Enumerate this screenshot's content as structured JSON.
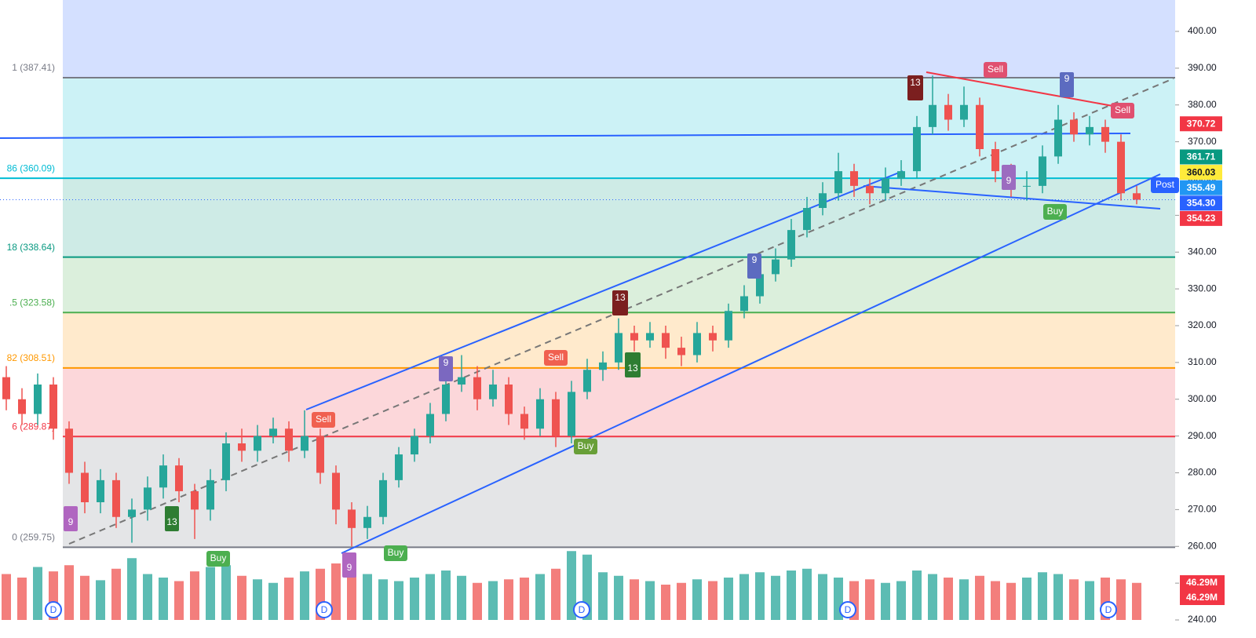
{
  "chart_data": {
    "type": "candlestick",
    "open": [
      306,
      300,
      296,
      304,
      292,
      280,
      272,
      278,
      268,
      270,
      276,
      282,
      275,
      270,
      278,
      288,
      286,
      290,
      292,
      286,
      290,
      280,
      270,
      265,
      268,
      278,
      285,
      290,
      296,
      304,
      306,
      300,
      304,
      296,
      292,
      300,
      290,
      302,
      308,
      310,
      318,
      316,
      318,
      314,
      312,
      318,
      316,
      324,
      328,
      334,
      338,
      346,
      352,
      356,
      362,
      358,
      356,
      360,
      362,
      374,
      380,
      376,
      380,
      368,
      362,
      358,
      358,
      366,
      376,
      372,
      374,
      370,
      356
    ],
    "high": [
      309,
      303,
      307,
      306,
      294,
      283,
      281,
      280,
      273,
      279,
      285,
      284,
      277,
      281,
      291,
      292,
      293,
      295,
      294,
      297,
      292,
      282,
      272,
      271,
      280,
      287,
      292,
      299,
      307,
      312,
      309,
      308,
      306,
      298,
      303,
      302,
      305,
      311,
      313,
      322,
      320,
      321,
      320,
      317,
      321,
      320,
      326,
      331,
      337,
      341,
      349,
      355,
      359,
      367,
      364,
      360,
      363,
      365,
      377,
      388,
      383,
      385,
      382,
      370,
      364,
      362,
      369,
      380,
      378,
      377,
      376,
      372,
      358
    ],
    "low": [
      297,
      293,
      293,
      289,
      277,
      269,
      269,
      265,
      261,
      267,
      273,
      272,
      262,
      267,
      275,
      283,
      283,
      288,
      283,
      284,
      277,
      266,
      260,
      262,
      266,
      276,
      283,
      288,
      294,
      302,
      297,
      298,
      293,
      289,
      290,
      287,
      288,
      300,
      305,
      308,
      313,
      314,
      311,
      309,
      310,
      313,
      314,
      322,
      326,
      332,
      336,
      344,
      350,
      354,
      355,
      353,
      354,
      358,
      360,
      372,
      373,
      374,
      366,
      359,
      355,
      354,
      356,
      364,
      370,
      369,
      367,
      354,
      353
    ],
    "close": [
      300,
      296,
      304,
      292,
      280,
      272,
      278,
      268,
      270,
      276,
      282,
      275,
      270,
      278,
      288,
      286,
      290,
      292,
      286,
      290,
      280,
      270,
      265,
      268,
      278,
      285,
      290,
      296,
      304,
      306,
      300,
      304,
      296,
      292,
      300,
      290,
      302,
      308,
      310,
      318,
      316,
      318,
      314,
      312,
      318,
      316,
      324,
      328,
      334,
      338,
      346,
      352,
      356,
      362,
      358,
      356,
      360,
      362,
      374,
      380,
      376,
      380,
      368,
      362,
      358,
      358,
      366,
      376,
      372,
      374,
      370,
      356,
      354.23
    ],
    "volume": [
      52,
      48,
      60,
      55,
      62,
      50,
      45,
      58,
      70,
      52,
      48,
      44,
      55,
      60,
      62,
      50,
      46,
      42,
      48,
      55,
      58,
      64,
      60,
      52,
      46,
      44,
      48,
      52,
      56,
      50,
      42,
      44,
      46,
      48,
      52,
      58,
      78,
      74,
      54,
      50,
      46,
      44,
      40,
      42,
      46,
      44,
      48,
      52,
      54,
      50,
      56,
      58,
      52,
      48,
      44,
      46,
      42,
      44,
      56,
      52,
      48,
      46,
      50,
      44,
      42,
      48,
      54,
      52,
      46,
      44,
      48,
      46,
      42
    ],
    "up_color": "#26a69a",
    "down_color": "#ef5350",
    "ylim": [
      240,
      400
    ],
    "yticks": [
      {
        "value": 240,
        "label": "240.00"
      },
      {
        "value": 250,
        "label": "250.00"
      },
      {
        "value": 260,
        "label": "260.00"
      },
      {
        "value": 270,
        "label": "270.00"
      },
      {
        "value": 280,
        "label": "280.00"
      },
      {
        "value": 290,
        "label": "290.00"
      },
      {
        "value": 300,
        "label": "300.00"
      },
      {
        "value": 310,
        "label": "310.00"
      },
      {
        "value": 320,
        "label": "320.00"
      },
      {
        "value": 330,
        "label": "330.00"
      },
      {
        "value": 340,
        "label": "340.00"
      },
      {
        "value": 350,
        "label": "350.00"
      },
      {
        "value": 360,
        "label": "360.00"
      },
      {
        "value": 370,
        "label": "370.00"
      },
      {
        "value": 380,
        "label": "380.00"
      },
      {
        "value": 390,
        "label": "390.00"
      },
      {
        "value": 400,
        "label": "400.00"
      }
    ],
    "fib_levels": [
      {
        "value": 387.41,
        "label": "1 (387.41)",
        "color": "#787b86"
      },
      {
        "value": 360.09,
        "label": "86 (360.09)",
        "color": "#00bcd4"
      },
      {
        "value": 338.64,
        "label": "18 (338.64)",
        "color": "#089981"
      },
      {
        "value": 323.58,
        "label": ".5 (323.58)",
        "color": "#4caf50"
      },
      {
        "value": 308.51,
        "label": "82 (308.51)",
        "color": "#ff9800"
      },
      {
        "value": 289.87,
        "label": "6 (289.87)",
        "color": "#f23645"
      },
      {
        "value": 259.75,
        "label": "0 (259.75)",
        "color": "#787b86"
      }
    ],
    "price_tags": [
      {
        "value": 370.72,
        "color": "#f23645"
      },
      {
        "value": 361.71,
        "color": "#089981"
      },
      {
        "value": 360.03,
        "color": "#ffeb3b"
      },
      {
        "value": 355.49,
        "color": "#2196f3"
      },
      {
        "value": 354.3,
        "label": "354.30",
        "color": "#2962ff"
      },
      {
        "value": 354.23,
        "color": "#f23645"
      }
    ],
    "post_label": "Post",
    "volume_labels": [
      "46.29M",
      "46.29M"
    ],
    "signals": [
      "Sell",
      "Sell",
      "Sell",
      "Sell",
      "Buy",
      "Buy",
      "Buy",
      "Buy"
    ],
    "counters": [
      "9",
      "13",
      "9",
      "9",
      "13",
      "13",
      "9",
      "13",
      "9",
      "9"
    ],
    "dividends": [
      "D",
      "D",
      "D",
      "D",
      "D"
    ]
  }
}
